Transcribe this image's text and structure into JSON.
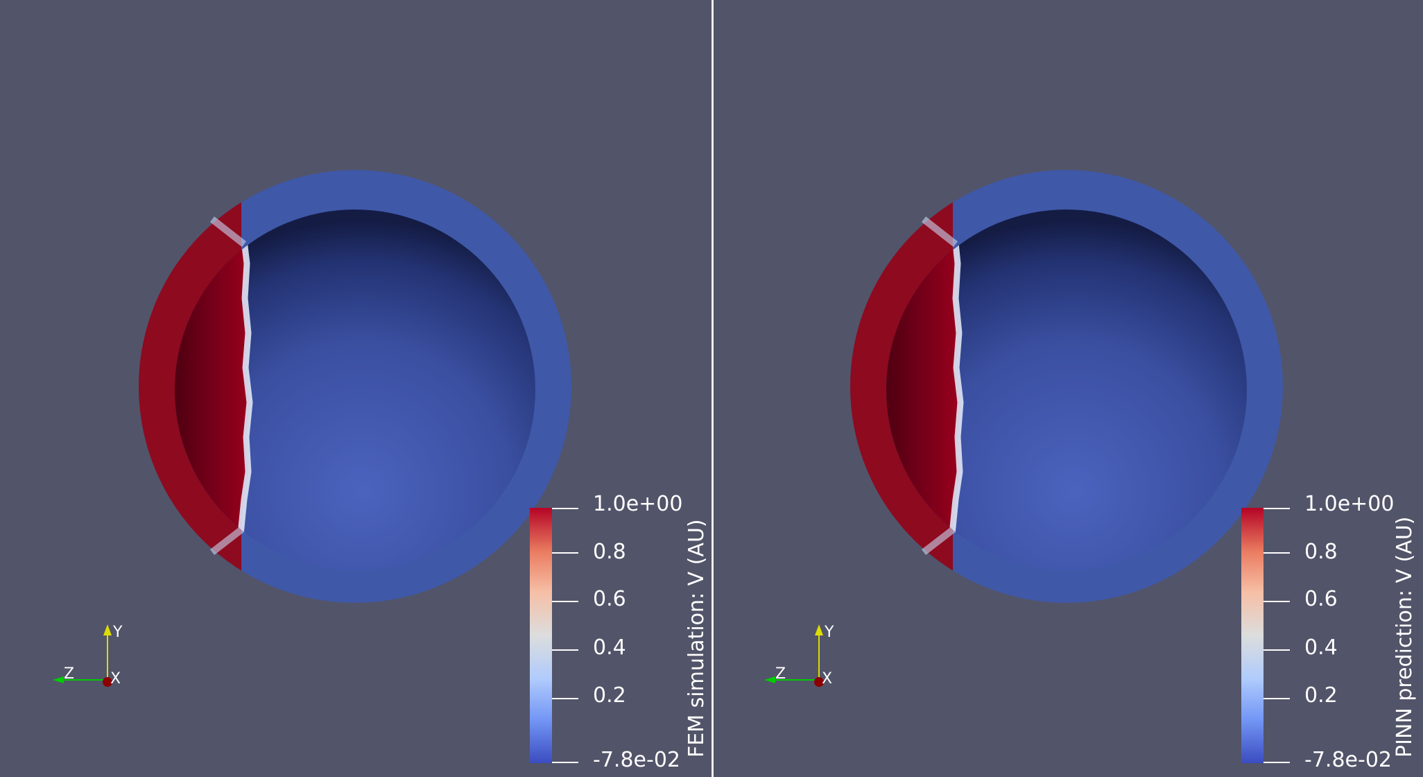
{
  "views": [
    {
      "colorbar_title": "FEM simulation: V (AU)",
      "tick_labels": [
        "1.0e+00",
        "0.8",
        "0.6",
        "0.4",
        "0.2",
        "-7.8e-02"
      ],
      "axes": {
        "x": "X",
        "y": "Y",
        "z": "Z"
      }
    },
    {
      "colorbar_title": "PINN prediction: V (AU)",
      "tick_labels": [
        "1.0e+00",
        "0.8",
        "0.6",
        "0.4",
        "0.2",
        "-7.8e-02"
      ],
      "axes": {
        "x": "X",
        "y": "Y",
        "z": "Z"
      }
    }
  ],
  "colors": {
    "background": "#525469",
    "divider": "#eeeeee",
    "colormap": [
      "#3b4cc0",
      "#7396f5",
      "#b0cbfc",
      "#dcdddd",
      "#f6bfa6",
      "#ea7b60",
      "#b40426"
    ],
    "axis_x": "#8b0000",
    "axis_y": "#dddd00",
    "axis_z": "#00cc00"
  }
}
